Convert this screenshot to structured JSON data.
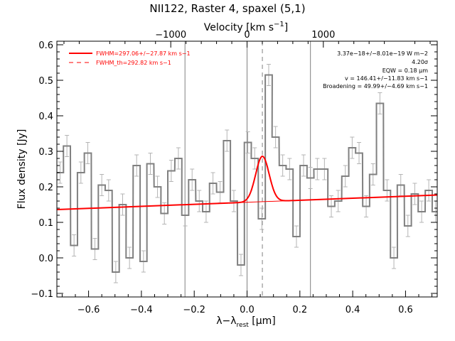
{
  "chart_data": {
    "type": "line",
    "title": "NII122, Raster 4, spaxel (5,1)",
    "xlabel_main": "λ−λ",
    "xlabel_sub": "rest",
    "xlabel_unit_open": " [",
    "xlabel_unit_mu": "μ",
    "xlabel_unit_rest": "m]",
    "ylabel": "Flux density [Jy]",
    "top_xlabel_main": "Velocity [km s",
    "top_xlabel_sup": "−1",
    "top_xlabel_close": "]",
    "xlim": [
      -0.72,
      0.72
    ],
    "ylim": [
      -0.11,
      0.61
    ],
    "top_xlim": [
      -2493,
      2493
    ],
    "x_ticks": [
      -0.6,
      -0.4,
      -0.2,
      0.0,
      0.2,
      0.4,
      0.6
    ],
    "x_tick_labels": [
      "−0.6",
      "−0.4",
      "−0.2",
      "0.0",
      "0.2",
      "0.4",
      "0.6"
    ],
    "y_ticks": [
      -0.1,
      0.0,
      0.1,
      0.2,
      0.3,
      0.4,
      0.5,
      0.6
    ],
    "y_tick_labels": [
      "−0.1",
      "0.0",
      "0.1",
      "0.2",
      "0.3",
      "0.4",
      "0.5",
      "0.6"
    ],
    "top_ticks": [
      -1000,
      0,
      1000
    ],
    "top_tick_labels": [
      "−1000",
      "0",
      "1000"
    ],
    "vertical_lines": [
      -0.235,
      0.0,
      0.24
    ],
    "dashed_line_x": 0.058,
    "bin_width": 0.0263,
    "spectrum": {
      "x": [
        -0.708,
        -0.682,
        -0.655,
        -0.629,
        -0.603,
        -0.576,
        -0.55,
        -0.524,
        -0.497,
        -0.471,
        -0.445,
        -0.418,
        -0.392,
        -0.366,
        -0.339,
        -0.313,
        -0.287,
        -0.26,
        -0.234,
        -0.208,
        -0.181,
        -0.155,
        -0.129,
        -0.102,
        -0.076,
        -0.05,
        -0.023,
        0.003,
        0.029,
        0.056,
        0.082,
        0.108,
        0.135,
        0.161,
        0.187,
        0.214,
        0.24,
        0.266,
        0.293,
        0.319,
        0.345,
        0.372,
        0.398,
        0.424,
        0.451,
        0.477,
        0.503,
        0.53,
        0.556,
        0.582,
        0.609,
        0.635,
        0.661,
        0.688,
        0.714
      ],
      "y": [
        0.24,
        0.315,
        0.035,
        0.24,
        0.295,
        0.025,
        0.205,
        0.19,
        -0.04,
        0.15,
        0.0,
        0.26,
        -0.01,
        0.265,
        0.2,
        0.125,
        0.245,
        0.28,
        0.12,
        0.22,
        0.16,
        0.13,
        0.21,
        0.185,
        0.33,
        0.16,
        -0.02,
        0.325,
        0.28,
        0.11,
        0.515,
        0.34,
        0.26,
        0.25,
        0.06,
        0.26,
        0.225,
        0.25,
        0.25,
        0.145,
        0.16,
        0.23,
        0.31,
        0.295,
        0.145,
        0.235,
        0.435,
        0.19,
        0.0,
        0.205,
        0.09,
        0.18,
        0.13,
        0.19,
        0.13
      ],
      "err": 0.03
    },
    "continuum": {
      "x": [
        -0.72,
        0.72
      ],
      "y": [
        0.136,
        0.177
      ]
    },
    "gaussian_fit": {
      "center": 0.058,
      "amplitude": 0.128,
      "sigma": 0.0255
    },
    "legend": [
      {
        "label": "FWHM=297.06+/−27.87 km s−1",
        "style": "solid"
      },
      {
        "label": "FWHM_th=292.82 km s−1",
        "style": "dashed"
      }
    ],
    "annotations": [
      "3.37e−18+/−8.01e−19 W m−2",
      "4.20σ",
      "EQW = 0.18 μm",
      "v = 146.41+/−11.83 km s−1",
      "Broadening = 49.99+/−4.69 km s−1"
    ],
    "colors": {
      "spectrum": "#808080",
      "errorbar": "#b4b4b4",
      "fit": "#ff0000",
      "vline": "#808080",
      "axes": "#000000"
    }
  }
}
